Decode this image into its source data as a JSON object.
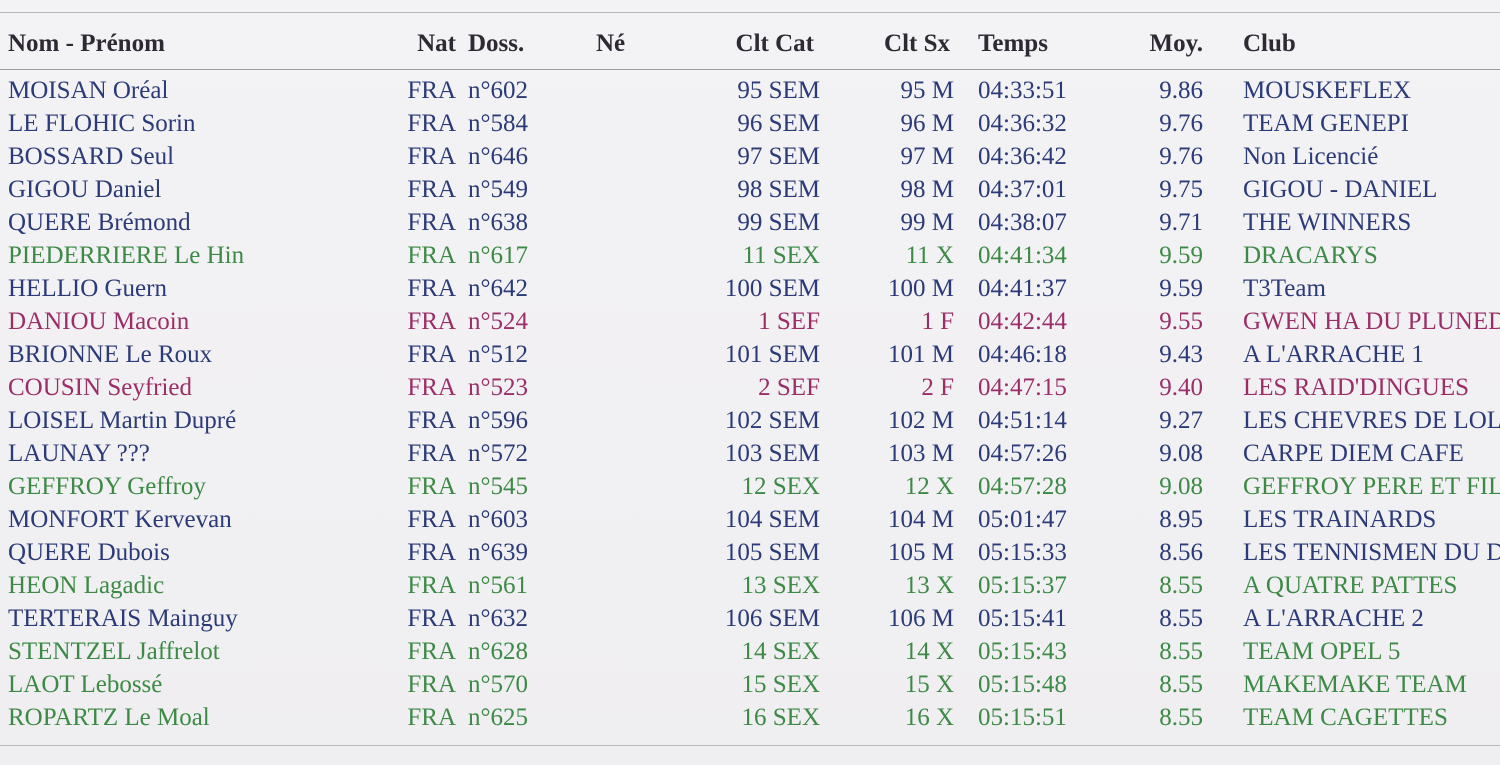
{
  "columns": {
    "name": "Nom - Prénom",
    "nat": "Nat",
    "doss": "Doss.",
    "ne": "Né",
    "clt_cat": "Clt Cat",
    "clt_sx": "Clt Sx",
    "temps": "Temps",
    "moy": "Moy.",
    "club": "Club"
  },
  "colors": {
    "male": "#2b3a78",
    "mixed": "#3c8a45",
    "female": "#9b2e67",
    "header": "#2d2a33"
  },
  "rows": [
    {
      "name": "MOISAN Oréal",
      "nat": "FRA",
      "doss": "n°602",
      "ne": "",
      "clt_cat": "95 SEM",
      "clt_sx": "95 M",
      "temps": "04:33:51",
      "moy": "9.86",
      "club": "MOUSKEFLEX",
      "group": "m"
    },
    {
      "name": "LE FLOHIC Sorin",
      "nat": "FRA",
      "doss": "n°584",
      "ne": "",
      "clt_cat": "96 SEM",
      "clt_sx": "96 M",
      "temps": "04:36:32",
      "moy": "9.76",
      "club": "TEAM GENEPI",
      "group": "m"
    },
    {
      "name": "BOSSARD Seul",
      "nat": "FRA",
      "doss": "n°646",
      "ne": "",
      "clt_cat": "97 SEM",
      "clt_sx": "97 M",
      "temps": "04:36:42",
      "moy": "9.76",
      "club": "Non Licencié",
      "group": "m"
    },
    {
      "name": "GIGOU Daniel",
      "nat": "FRA",
      "doss": "n°549",
      "ne": "",
      "clt_cat": "98 SEM",
      "clt_sx": "98 M",
      "temps": "04:37:01",
      "moy": "9.75",
      "club": "GIGOU - DANIEL",
      "group": "m"
    },
    {
      "name": "QUERE Brémond",
      "nat": "FRA",
      "doss": "n°638",
      "ne": "",
      "clt_cat": "99 SEM",
      "clt_sx": "99 M",
      "temps": "04:38:07",
      "moy": "9.71",
      "club": "THE WINNERS",
      "group": "m"
    },
    {
      "name": "PIEDERRIERE Le Hin",
      "nat": "FRA",
      "doss": "n°617",
      "ne": "",
      "clt_cat": "11 SEX",
      "clt_sx": "11 X",
      "temps": "04:41:34",
      "moy": "9.59",
      "club": "DRACARYS",
      "group": "x"
    },
    {
      "name": "HELLIO Guern",
      "nat": "FRA",
      "doss": "n°642",
      "ne": "",
      "clt_cat": "100 SEM",
      "clt_sx": "100 M",
      "temps": "04:41:37",
      "moy": "9.59",
      "club": "T3Team",
      "group": "m"
    },
    {
      "name": "DANIOU Macoin",
      "nat": "FRA",
      "doss": "n°524",
      "ne": "",
      "clt_cat": "1 SEF",
      "clt_sx": "1 F",
      "temps": "04:42:44",
      "moy": "9.55",
      "club": "GWEN HA DU PLUNED",
      "group": "f"
    },
    {
      "name": "BRIONNE Le Roux",
      "nat": "FRA",
      "doss": "n°512",
      "ne": "",
      "clt_cat": "101 SEM",
      "clt_sx": "101 M",
      "temps": "04:46:18",
      "moy": "9.43",
      "club": "A L'ARRACHE 1",
      "group": "m"
    },
    {
      "name": "COUSIN Seyfried",
      "nat": "FRA",
      "doss": "n°523",
      "ne": "",
      "clt_cat": "2 SEF",
      "clt_sx": "2 F",
      "temps": "04:47:15",
      "moy": "9.40",
      "club": "LES RAID'DINGUES",
      "group": "f"
    },
    {
      "name": "LOISEL Martin Dupré",
      "nat": "FRA",
      "doss": "n°596",
      "ne": "",
      "clt_cat": "102 SEM",
      "clt_sx": "102 M",
      "temps": "04:51:14",
      "moy": "9.27",
      "club": "LES CHEVRES DE LOLO",
      "group": "m"
    },
    {
      "name": "LAUNAY ???",
      "nat": "FRA",
      "doss": "n°572",
      "ne": "",
      "clt_cat": "103 SEM",
      "clt_sx": "103 M",
      "temps": "04:57:26",
      "moy": "9.08",
      "club": "CARPE DIEM CAFE",
      "group": "m"
    },
    {
      "name": "GEFFROY Geffroy",
      "nat": "FRA",
      "doss": "n°545",
      "ne": "",
      "clt_cat": "12 SEX",
      "clt_sx": "12 X",
      "temps": "04:57:28",
      "moy": "9.08",
      "club": "GEFFROY PERE ET FILLE",
      "group": "x"
    },
    {
      "name": "MONFORT Kervevan",
      "nat": "FRA",
      "doss": "n°603",
      "ne": "",
      "clt_cat": "104 SEM",
      "clt_sx": "104 M",
      "temps": "05:01:47",
      "moy": "8.95",
      "club": "LES TRAINARDS",
      "group": "m"
    },
    {
      "name": "QUERE Dubois",
      "nat": "FRA",
      "doss": "n°639",
      "ne": "",
      "clt_cat": "105 SEM",
      "clt_sx": "105 M",
      "temps": "05:15:33",
      "moy": "8.56",
      "club": "LES TENNISMEN DU DIMA",
      "group": "m"
    },
    {
      "name": "HEON Lagadic",
      "nat": "FRA",
      "doss": "n°561",
      "ne": "",
      "clt_cat": "13 SEX",
      "clt_sx": "13 X",
      "temps": "05:15:37",
      "moy": "8.55",
      "club": "A QUATRE PATTES",
      "group": "x"
    },
    {
      "name": "TERTERAIS Mainguy",
      "nat": "FRA",
      "doss": "n°632",
      "ne": "",
      "clt_cat": "106 SEM",
      "clt_sx": "106 M",
      "temps": "05:15:41",
      "moy": "8.55",
      "club": "A L'ARRACHE 2",
      "group": "m"
    },
    {
      "name": "STENTZEL Jaffrelot",
      "nat": "FRA",
      "doss": "n°628",
      "ne": "",
      "clt_cat": "14 SEX",
      "clt_sx": "14 X",
      "temps": "05:15:43",
      "moy": "8.55",
      "club": "TEAM OPEL 5",
      "group": "x"
    },
    {
      "name": "LAOT Lebossé",
      "nat": "FRA",
      "doss": "n°570",
      "ne": "",
      "clt_cat": "15 SEX",
      "clt_sx": "15 X",
      "temps": "05:15:48",
      "moy": "8.55",
      "club": "MAKEMAKE TEAM",
      "group": "x"
    },
    {
      "name": "ROPARTZ Le Moal",
      "nat": "FRA",
      "doss": "n°625",
      "ne": "",
      "clt_cat": "16 SEX",
      "clt_sx": "16 X",
      "temps": "05:15:51",
      "moy": "8.55",
      "club": "TEAM CAGETTES",
      "group": "x"
    }
  ]
}
